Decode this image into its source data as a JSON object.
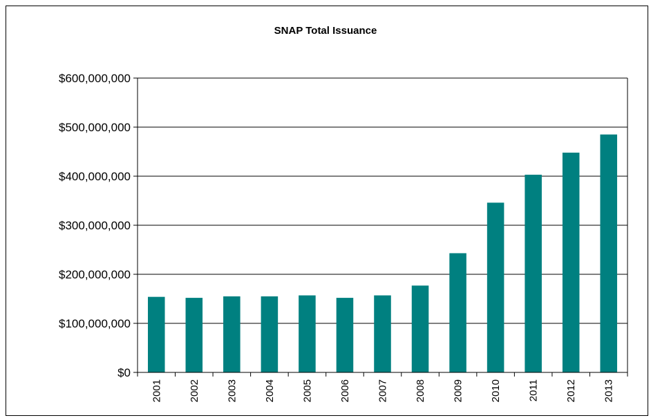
{
  "chart_data": {
    "type": "bar",
    "title": "SNAP  Total Issuance",
    "xlabel": "",
    "ylabel": "",
    "categories": [
      "2001",
      "2002",
      "2003",
      "2004",
      "2005",
      "2006",
      "2007",
      "2008",
      "2009",
      "2010",
      "2011",
      "2012",
      "2013"
    ],
    "values": [
      154000000,
      152000000,
      155000000,
      155000000,
      157000000,
      152000000,
      157000000,
      177000000,
      243000000,
      346000000,
      403000000,
      448000000,
      485000000
    ],
    "ylim": [
      0,
      600000000
    ],
    "yticks": [
      0,
      100000000,
      200000000,
      300000000,
      400000000,
      500000000,
      600000000
    ],
    "ytick_labels": [
      "$0",
      "$100,000,000",
      "$200,000,000",
      "$300,000,000",
      "$400,000,000",
      "$500,000,000",
      "$600,000,000"
    ],
    "grid": "horizontal major",
    "legend": "none",
    "colors": {
      "bar": "#008080",
      "grid": "#000000",
      "axis": "#000000",
      "background": "#ffffff"
    }
  }
}
